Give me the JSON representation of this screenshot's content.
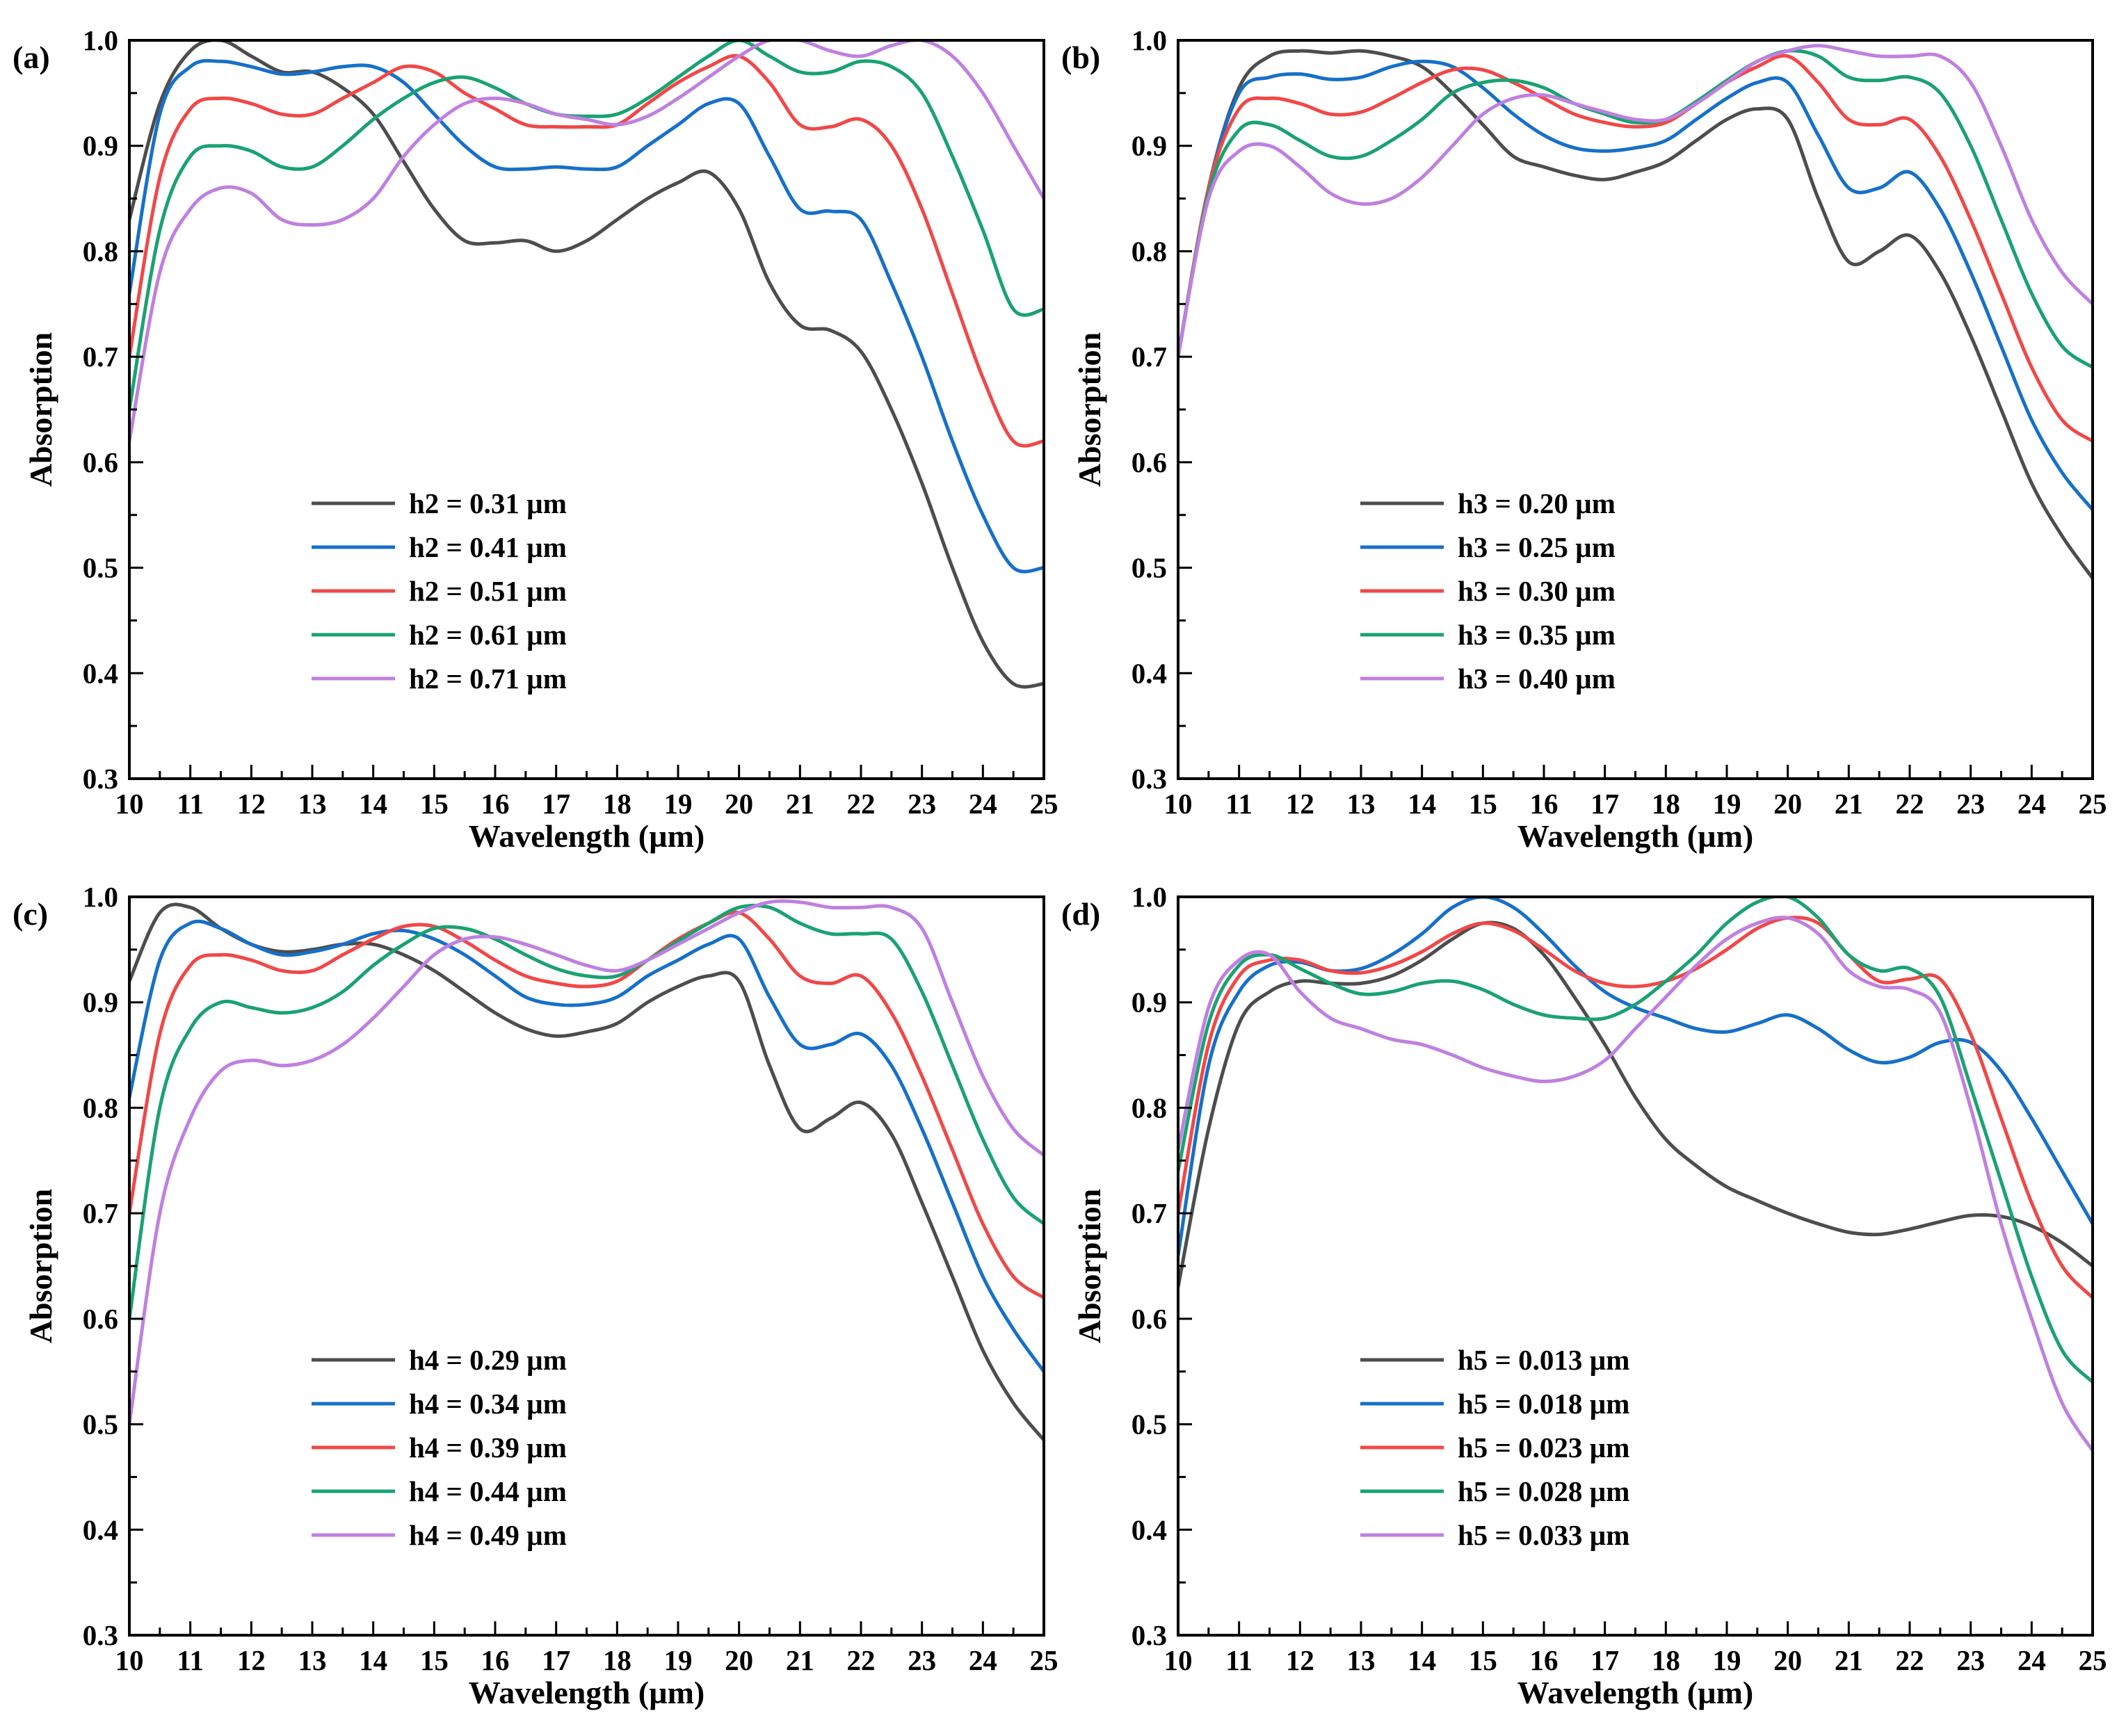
{
  "colors": {
    "series": [
      "#4d4d4d",
      "#1670c9",
      "#f04848",
      "#1aa272",
      "#bf80e0"
    ]
  },
  "chart_data": [
    {
      "type": "line",
      "panel_label": "(a)",
      "xlabel": "Wavelength (µm)",
      "ylabel": "Absorption",
      "xlim": [
        10,
        25
      ],
      "ylim": [
        0.3,
        1.0
      ],
      "xticks": [
        10,
        11,
        12,
        13,
        14,
        15,
        16,
        17,
        18,
        19,
        20,
        21,
        22,
        23,
        24,
        25
      ],
      "yticks": [
        0.3,
        0.4,
        0.5,
        0.6,
        0.7,
        0.8,
        0.9,
        1.0
      ],
      "legend_position": "lower-left",
      "x": [
        10,
        10.5,
        11,
        11.5,
        12,
        12.5,
        13,
        13.5,
        14,
        14.5,
        15,
        15.5,
        16,
        16.5,
        17,
        17.5,
        18,
        18.5,
        19,
        19.5,
        20,
        20.5,
        21,
        21.5,
        22,
        22.5,
        23,
        23.5,
        24,
        24.5,
        25
      ],
      "series": [
        {
          "name": "h2 = 0.31 µm",
          "values": [
            0.83,
            0.94,
            0.99,
            1.0,
            0.985,
            0.97,
            0.97,
            0.955,
            0.93,
            0.885,
            0.84,
            0.81,
            0.808,
            0.81,
            0.8,
            0.81,
            0.83,
            0.85,
            0.865,
            0.875,
            0.84,
            0.77,
            0.73,
            0.725,
            0.705,
            0.65,
            0.58,
            0.5,
            0.43,
            0.39,
            0.39
          ]
        },
        {
          "name": "h2 = 0.41 µm",
          "values": [
            0.76,
            0.93,
            0.975,
            0.98,
            0.975,
            0.968,
            0.97,
            0.975,
            0.975,
            0.96,
            0.93,
            0.9,
            0.88,
            0.878,
            0.88,
            0.878,
            0.88,
            0.9,
            0.92,
            0.94,
            0.94,
            0.89,
            0.84,
            0.838,
            0.83,
            0.77,
            0.7,
            0.62,
            0.55,
            0.5,
            0.5
          ]
        },
        {
          "name": "h2 = 0.51 µm",
          "values": [
            0.7,
            0.87,
            0.935,
            0.945,
            0.94,
            0.93,
            0.93,
            0.945,
            0.96,
            0.975,
            0.97,
            0.95,
            0.935,
            0.92,
            0.918,
            0.918,
            0.92,
            0.94,
            0.96,
            0.975,
            0.985,
            0.96,
            0.92,
            0.918,
            0.925,
            0.9,
            0.84,
            0.76,
            0.68,
            0.62,
            0.62
          ]
        },
        {
          "name": "h2 = 0.61 µm",
          "values": [
            0.65,
            0.82,
            0.89,
            0.9,
            0.895,
            0.88,
            0.88,
            0.9,
            0.925,
            0.945,
            0.96,
            0.965,
            0.955,
            0.94,
            0.93,
            0.928,
            0.93,
            0.945,
            0.965,
            0.985,
            1.0,
            0.985,
            0.97,
            0.97,
            0.98,
            0.975,
            0.95,
            0.89,
            0.82,
            0.745,
            0.745
          ]
        },
        {
          "name": "h2 = 0.71 µm",
          "values": [
            0.62,
            0.78,
            0.84,
            0.86,
            0.855,
            0.83,
            0.825,
            0.83,
            0.85,
            0.89,
            0.92,
            0.94,
            0.945,
            0.94,
            0.93,
            0.925,
            0.92,
            0.928,
            0.945,
            0.965,
            0.985,
            1.0,
            1.0,
            0.99,
            0.985,
            0.995,
            1.0,
            0.985,
            0.95,
            0.9,
            0.85
          ]
        }
      ]
    },
    {
      "type": "line",
      "panel_label": "(b)",
      "xlabel": "Wavelength (µm)",
      "ylabel": "Absorption",
      "xlim": [
        10,
        25
      ],
      "ylim": [
        0.3,
        1.0
      ],
      "xticks": [
        10,
        11,
        12,
        13,
        14,
        15,
        16,
        17,
        18,
        19,
        20,
        21,
        22,
        23,
        24,
        25
      ],
      "yticks": [
        0.3,
        0.4,
        0.5,
        0.6,
        0.7,
        0.8,
        0.9,
        1.0
      ],
      "legend_position": "lower-left",
      "x": [
        10,
        10.5,
        11,
        11.5,
        12,
        12.5,
        13,
        13.5,
        14,
        14.5,
        15,
        15.5,
        16,
        16.5,
        17,
        17.5,
        18,
        18.5,
        19,
        19.5,
        20,
        20.5,
        21,
        21.5,
        22,
        22.5,
        23,
        23.5,
        24,
        24.5,
        25
      ],
      "series": [
        {
          "name": "h3 = 0.20 µm",
          "values": [
            0.7,
            0.86,
            0.955,
            0.985,
            0.99,
            0.988,
            0.99,
            0.985,
            0.975,
            0.95,
            0.92,
            0.89,
            0.88,
            0.872,
            0.868,
            0.875,
            0.885,
            0.905,
            0.925,
            0.935,
            0.925,
            0.85,
            0.79,
            0.8,
            0.815,
            0.78,
            0.72,
            0.65,
            0.58,
            0.53,
            0.49
          ]
        },
        {
          "name": "h3 = 0.25 µm",
          "values": [
            0.7,
            0.86,
            0.95,
            0.965,
            0.968,
            0.963,
            0.965,
            0.975,
            0.98,
            0.975,
            0.955,
            0.93,
            0.91,
            0.898,
            0.895,
            0.898,
            0.905,
            0.925,
            0.945,
            0.96,
            0.96,
            0.91,
            0.86,
            0.86,
            0.875,
            0.84,
            0.78,
            0.71,
            0.64,
            0.59,
            0.555
          ]
        },
        {
          "name": "h3 = 0.30 µm",
          "values": [
            0.7,
            0.86,
            0.935,
            0.945,
            0.94,
            0.93,
            0.932,
            0.945,
            0.96,
            0.972,
            0.972,
            0.96,
            0.945,
            0.93,
            0.922,
            0.918,
            0.922,
            0.94,
            0.96,
            0.975,
            0.985,
            0.96,
            0.925,
            0.92,
            0.925,
            0.89,
            0.83,
            0.76,
            0.69,
            0.64,
            0.62
          ]
        },
        {
          "name": "h3 = 0.35 µm",
          "values": [
            0.7,
            0.855,
            0.915,
            0.92,
            0.905,
            0.89,
            0.89,
            0.905,
            0.925,
            0.95,
            0.96,
            0.962,
            0.955,
            0.94,
            0.93,
            0.922,
            0.925,
            0.942,
            0.962,
            0.98,
            0.99,
            0.985,
            0.965,
            0.962,
            0.965,
            0.95,
            0.9,
            0.83,
            0.76,
            0.71,
            0.69
          ]
        },
        {
          "name": "h3 = 0.40 µm",
          "values": [
            0.7,
            0.85,
            0.895,
            0.9,
            0.88,
            0.855,
            0.845,
            0.85,
            0.87,
            0.9,
            0.93,
            0.945,
            0.948,
            0.94,
            0.932,
            0.925,
            0.925,
            0.94,
            0.96,
            0.98,
            0.99,
            0.995,
            0.99,
            0.985,
            0.985,
            0.985,
            0.96,
            0.9,
            0.83,
            0.78,
            0.75
          ]
        }
      ]
    },
    {
      "type": "line",
      "panel_label": "(c)",
      "xlabel": "Wavelength (µm)",
      "ylabel": "Absorption",
      "xlim": [
        10,
        25
      ],
      "ylim": [
        0.3,
        1.0
      ],
      "xticks": [
        10,
        11,
        12,
        13,
        14,
        15,
        16,
        17,
        18,
        19,
        20,
        21,
        22,
        23,
        24,
        25
      ],
      "yticks": [
        0.3,
        0.4,
        0.5,
        0.6,
        0.7,
        0.8,
        0.9,
        1.0
      ],
      "legend_position": "lower-left",
      "x": [
        10,
        10.5,
        11,
        11.5,
        12,
        12.5,
        13,
        13.5,
        14,
        14.5,
        15,
        15.5,
        16,
        16.5,
        17,
        17.5,
        18,
        18.5,
        19,
        19.5,
        20,
        20.5,
        21,
        21.5,
        22,
        22.5,
        23,
        23.5,
        24,
        24.5,
        25
      ],
      "series": [
        {
          "name": "h4 = 0.29 µm",
          "values": [
            0.92,
            0.985,
            0.99,
            0.97,
            0.955,
            0.948,
            0.95,
            0.955,
            0.955,
            0.945,
            0.93,
            0.91,
            0.89,
            0.875,
            0.868,
            0.872,
            0.88,
            0.9,
            0.915,
            0.925,
            0.92,
            0.84,
            0.78,
            0.79,
            0.805,
            0.775,
            0.71,
            0.64,
            0.57,
            0.52,
            0.485
          ]
        },
        {
          "name": "h4 = 0.34 µm",
          "values": [
            0.81,
            0.94,
            0.975,
            0.97,
            0.955,
            0.945,
            0.948,
            0.955,
            0.965,
            0.968,
            0.96,
            0.945,
            0.925,
            0.905,
            0.898,
            0.898,
            0.905,
            0.925,
            0.94,
            0.955,
            0.96,
            0.905,
            0.86,
            0.86,
            0.87,
            0.84,
            0.78,
            0.71,
            0.64,
            0.59,
            0.55
          ]
        },
        {
          "name": "h4 = 0.39 µm",
          "values": [
            0.7,
            0.87,
            0.935,
            0.945,
            0.94,
            0.93,
            0.93,
            0.945,
            0.96,
            0.972,
            0.972,
            0.958,
            0.94,
            0.925,
            0.918,
            0.915,
            0.92,
            0.94,
            0.96,
            0.975,
            0.985,
            0.96,
            0.925,
            0.918,
            0.925,
            0.89,
            0.83,
            0.76,
            0.69,
            0.64,
            0.62
          ]
        },
        {
          "name": "h4 = 0.44 µm",
          "values": [
            0.6,
            0.8,
            0.875,
            0.9,
            0.895,
            0.89,
            0.895,
            0.91,
            0.935,
            0.955,
            0.97,
            0.97,
            0.96,
            0.945,
            0.932,
            0.925,
            0.925,
            0.94,
            0.958,
            0.975,
            0.99,
            0.99,
            0.975,
            0.965,
            0.965,
            0.96,
            0.91,
            0.84,
            0.77,
            0.715,
            0.69
          ]
        },
        {
          "name": "h4 = 0.49 µm",
          "values": [
            0.5,
            0.7,
            0.79,
            0.835,
            0.845,
            0.84,
            0.845,
            0.86,
            0.885,
            0.915,
            0.945,
            0.96,
            0.962,
            0.955,
            0.945,
            0.935,
            0.93,
            0.94,
            0.955,
            0.97,
            0.985,
            0.995,
            0.995,
            0.99,
            0.99,
            0.99,
            0.97,
            0.9,
            0.83,
            0.78,
            0.755
          ]
        }
      ]
    },
    {
      "type": "line",
      "panel_label": "(d)",
      "xlabel": "Wavelength (µm)",
      "ylabel": "Absorption",
      "xlim": [
        10,
        25
      ],
      "ylim": [
        0.3,
        1.0
      ],
      "xticks": [
        10,
        11,
        12,
        13,
        14,
        15,
        16,
        17,
        18,
        19,
        20,
        21,
        22,
        23,
        24,
        25
      ],
      "yticks": [
        0.3,
        0.4,
        0.5,
        0.6,
        0.7,
        0.8,
        0.9,
        1.0
      ],
      "legend_position": "lower-left",
      "x": [
        10,
        10.5,
        11,
        11.5,
        12,
        12.5,
        13,
        13.5,
        14,
        14.5,
        15,
        15.5,
        16,
        16.5,
        17,
        17.5,
        18,
        18.5,
        19,
        19.5,
        20,
        20.5,
        21,
        21.5,
        22,
        22.5,
        23,
        23.5,
        24,
        24.5,
        25
      ],
      "series": [
        {
          "name": "h5 = 0.013 µm",
          "values": [
            0.63,
            0.78,
            0.88,
            0.91,
            0.92,
            0.918,
            0.918,
            0.925,
            0.94,
            0.96,
            0.975,
            0.97,
            0.945,
            0.905,
            0.86,
            0.81,
            0.77,
            0.745,
            0.725,
            0.712,
            0.7,
            0.69,
            0.682,
            0.68,
            0.685,
            0.692,
            0.698,
            0.697,
            0.688,
            0.672,
            0.65
          ]
        },
        {
          "name": "h5 = 0.018 µm",
          "values": [
            0.66,
            0.84,
            0.91,
            0.935,
            0.938,
            0.93,
            0.932,
            0.945,
            0.965,
            0.99,
            1.0,
            0.99,
            0.965,
            0.935,
            0.91,
            0.895,
            0.885,
            0.875,
            0.872,
            0.88,
            0.888,
            0.875,
            0.855,
            0.843,
            0.848,
            0.862,
            0.862,
            0.835,
            0.79,
            0.74,
            0.69
          ]
        },
        {
          "name": "h5 = 0.023 µm",
          "values": [
            0.7,
            0.86,
            0.925,
            0.94,
            0.94,
            0.93,
            0.928,
            0.935,
            0.948,
            0.965,
            0.975,
            0.968,
            0.95,
            0.93,
            0.918,
            0.915,
            0.92,
            0.932,
            0.95,
            0.97,
            0.98,
            0.975,
            0.945,
            0.92,
            0.922,
            0.922,
            0.87,
            0.79,
            0.71,
            0.65,
            0.62
          ]
        },
        {
          "name": "h5 = 0.028 µm",
          "values": [
            0.74,
            0.88,
            0.935,
            0.945,
            0.932,
            0.918,
            0.908,
            0.91,
            0.918,
            0.92,
            0.912,
            0.898,
            0.888,
            0.885,
            0.885,
            0.898,
            0.92,
            0.945,
            0.975,
            0.995,
            1.0,
            0.98,
            0.945,
            0.93,
            0.932,
            0.905,
            0.82,
            0.73,
            0.64,
            0.57,
            0.54
          ]
        },
        {
          "name": "h5 = 0.033 µm",
          "values": [
            0.76,
            0.895,
            0.94,
            0.945,
            0.91,
            0.885,
            0.875,
            0.865,
            0.86,
            0.85,
            0.838,
            0.83,
            0.825,
            0.83,
            0.845,
            0.875,
            0.905,
            0.935,
            0.96,
            0.975,
            0.98,
            0.965,
            0.93,
            0.915,
            0.912,
            0.89,
            0.8,
            0.69,
            0.6,
            0.52,
            0.475
          ]
        }
      ]
    }
  ]
}
